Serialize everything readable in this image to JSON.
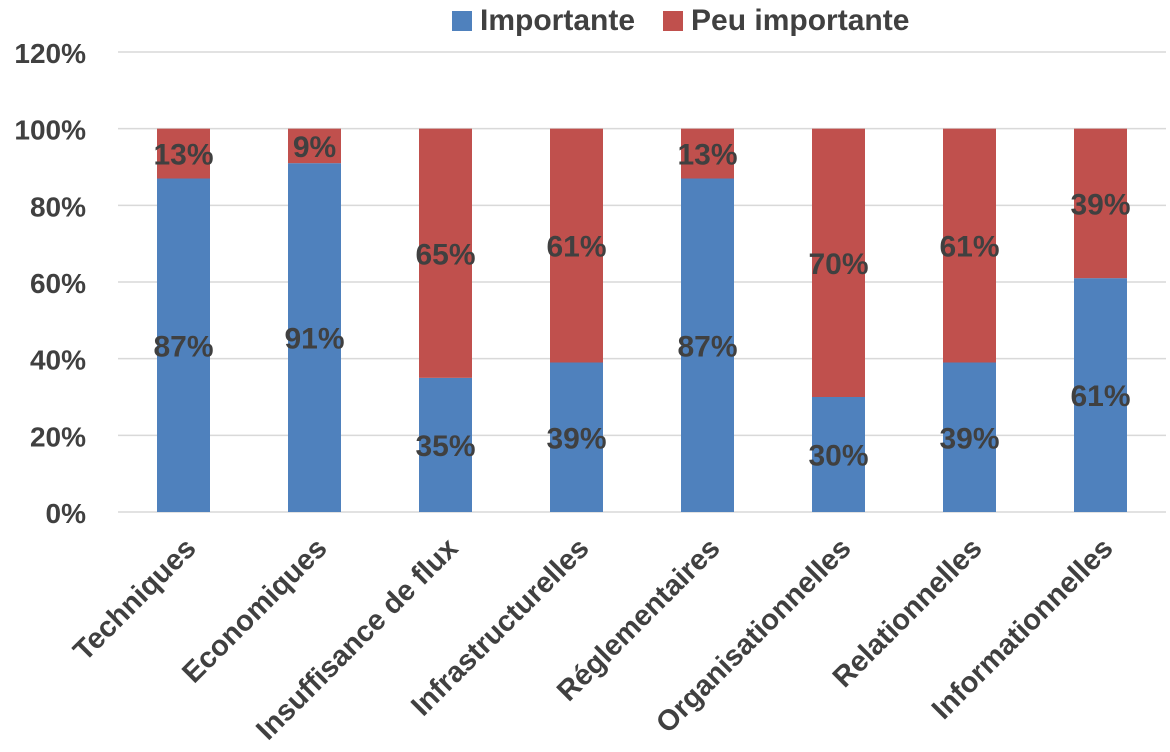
{
  "chart_data": {
    "type": "bar",
    "stacked": true,
    "categories": [
      "Techniques",
      "Economiques",
      "Insuffisance de flux",
      "Infrastructurelles",
      "Réglementaires",
      "Organisationnelles",
      "Relationnelles",
      "Informationnelles"
    ],
    "series": [
      {
        "name": "Importante",
        "color": "#4F81BD",
        "values": [
          87,
          91,
          35,
          39,
          87,
          30,
          39,
          61
        ],
        "labels": [
          "87%",
          "91%",
          "35%",
          "39%",
          "87%",
          "30%",
          "39%",
          "61%"
        ]
      },
      {
        "name": "Peu importante",
        "color": "#C0504D",
        "values": [
          13,
          9,
          65,
          61,
          13,
          70,
          61,
          39
        ],
        "labels": [
          "13%",
          "9%",
          "65%",
          "61%",
          "13%",
          "70%",
          "61%",
          "39%"
        ]
      }
    ],
    "ylim": [
      0,
      120
    ],
    "yticks": [
      0,
      20,
      40,
      60,
      80,
      100,
      120
    ],
    "ytick_labels": [
      "0%",
      "20%",
      "40%",
      "60%",
      "80%",
      "100%",
      "120%"
    ],
    "grid": true,
    "legend_position": "top"
  }
}
